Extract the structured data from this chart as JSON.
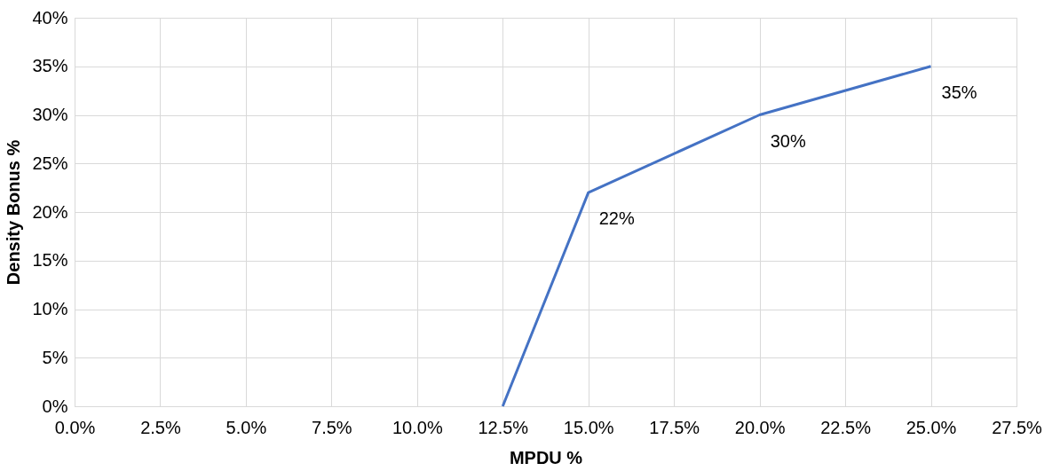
{
  "chart_data": {
    "type": "line",
    "xlabel": "MPDU %",
    "ylabel": "Density Bonus %",
    "x": [
      12.5,
      15,
      20,
      25
    ],
    "series": [
      {
        "color": "#4472c4",
        "values": [
          0,
          22,
          30,
          35
        ],
        "value_labels": [
          null,
          "22%",
          "30%",
          "35%"
        ]
      }
    ],
    "xlim": [
      0,
      27.5
    ],
    "xticks": [
      {
        "value": 0,
        "label": "0.0%"
      },
      {
        "value": 2.5,
        "label": "2.5%"
      },
      {
        "value": 5,
        "label": "5.0%"
      },
      {
        "value": 7.5,
        "label": "7.5%"
      },
      {
        "value": 10,
        "label": "10.0%"
      },
      {
        "value": 12.5,
        "label": "12.5%"
      },
      {
        "value": 15,
        "label": "15.0%"
      },
      {
        "value": 17.5,
        "label": "17.5%"
      },
      {
        "value": 20,
        "label": "20.0%"
      },
      {
        "value": 22.5,
        "label": "22.5%"
      },
      {
        "value": 25,
        "label": "25.0%"
      },
      {
        "value": 27.5,
        "label": "27.5%"
      }
    ],
    "ylim": [
      0,
      40
    ],
    "yticks": [
      {
        "value": 0,
        "label": "0%"
      },
      {
        "value": 5,
        "label": "5%"
      },
      {
        "value": 10,
        "label": "10%"
      },
      {
        "value": 15,
        "label": "15%"
      },
      {
        "value": 20,
        "label": "20%"
      },
      {
        "value": 25,
        "label": "25%"
      },
      {
        "value": 30,
        "label": "30%"
      },
      {
        "value": 35,
        "label": "35%"
      },
      {
        "value": 40,
        "label": "40%"
      }
    ],
    "grid": true,
    "marker": "none",
    "line_style": "solid",
    "legend": false
  }
}
